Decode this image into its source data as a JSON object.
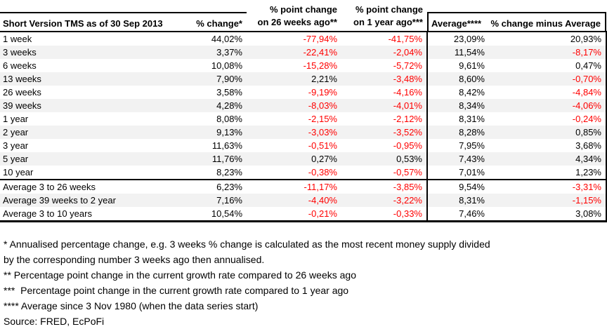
{
  "table": {
    "columns": [
      {
        "label": "Short Version TMS as of 30 Sep 2013"
      },
      {
        "label": "% change*"
      },
      {
        "line1": "% point change",
        "line2": "on 26 weeks ago**"
      },
      {
        "line1": "% point change",
        "line2": "on 1 year ago***"
      },
      {
        "label": "Average****"
      },
      {
        "label": "% change minus Average"
      }
    ],
    "separator_row_index": 11,
    "rows": [
      {
        "label": "1 week",
        "values": [
          "44,02%",
          "-77,94%",
          "-41,75%",
          "23,09%",
          "20,93%"
        ]
      },
      {
        "label": "3 weeks",
        "values": [
          "3,37%",
          "-22,41%",
          "-2,04%",
          "11,54%",
          "-8,17%"
        ]
      },
      {
        "label": "6 weeks",
        "values": [
          "10,08%",
          "-15,28%",
          "-5,72%",
          "9,61%",
          "0,47%"
        ]
      },
      {
        "label": "13 weeks",
        "values": [
          "7,90%",
          "2,21%",
          "-3,48%",
          "8,60%",
          "-0,70%"
        ]
      },
      {
        "label": "26 weeks",
        "values": [
          "3,58%",
          "-9,19%",
          "-4,16%",
          "8,42%",
          "-4,84%"
        ]
      },
      {
        "label": "39 weeks",
        "values": [
          "4,28%",
          "-8,03%",
          "-4,01%",
          "8,34%",
          "-4,06%"
        ]
      },
      {
        "label": "1 year",
        "values": [
          "8,08%",
          "-2,15%",
          "-2,12%",
          "8,31%",
          "-0,24%"
        ]
      },
      {
        "label": "2 year",
        "values": [
          "9,13%",
          "-3,03%",
          "-3,52%",
          "8,28%",
          "0,85%"
        ]
      },
      {
        "label": "3 year",
        "values": [
          "11,63%",
          "-0,51%",
          "-0,95%",
          "7,95%",
          "3,68%"
        ]
      },
      {
        "label": "5 year",
        "values": [
          "11,76%",
          "0,27%",
          "0,53%",
          "7,43%",
          "4,34%"
        ]
      },
      {
        "label": "10 year",
        "values": [
          "8,23%",
          "-0,38%",
          "-0,57%",
          "7,01%",
          "1,23%"
        ]
      },
      {
        "label": "Average 3 to 26 weeks",
        "values": [
          "6,23%",
          "-11,17%",
          "-3,85%",
          "9,54%",
          "-3,31%"
        ]
      },
      {
        "label": "Average 39 weeks to 2 year",
        "values": [
          "7,16%",
          "-4,40%",
          "-3,22%",
          "8,31%",
          "-1,15%"
        ]
      },
      {
        "label": "Average 3 to 10 years",
        "values": [
          "10,54%",
          "-0,21%",
          "-0,33%",
          "7,46%",
          "3,08%"
        ]
      }
    ]
  },
  "footnotes": [
    "* Annualised percentage change, e.g. 3 weeks % change is calculated as the most recent money supply divided",
    "by the corresponding number 3 weeks ago then annualised.",
    "** Percentage point change in the current growth rate compared to 26 weeks ago",
    "***  Percentage point change in the current growth rate compared to 1 year ago",
    "**** Average since 3 Nov 1980 (when the data series start)",
    "Source: FRED, EcPoFi"
  ],
  "colors": {
    "negative": "#ff0000",
    "band": "#f2f2f2",
    "border": "#000000"
  }
}
